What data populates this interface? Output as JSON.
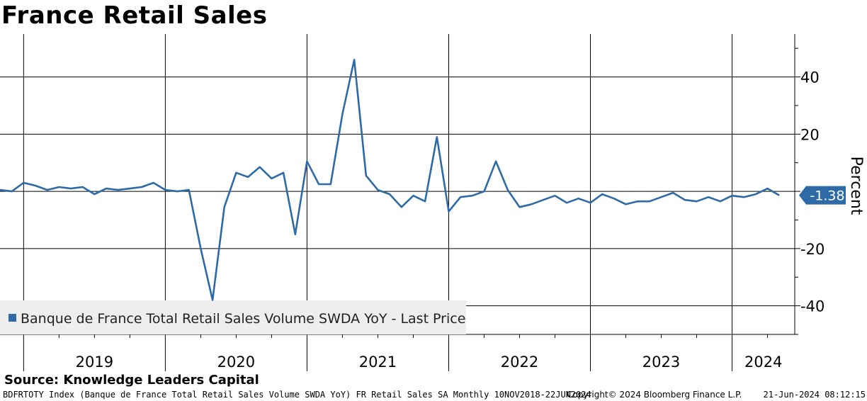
{
  "header": {
    "title": "France Retail Sales"
  },
  "source": "Source: Knowledge Leaders Capital",
  "footer": {
    "description": "BDFRTOTY Index (Banque de France Total Retail Sales Volume SWDA YoY) FR Retail Sales SA  Monthly 10NOV2018-22JUN2024",
    "copyright": "Copyright© 2024 Bloomberg Finance L.P.",
    "timestamp": "21-Jun-2024 08:12:15"
  },
  "colors": {
    "series": "#2d6aa6",
    "grid": "#000000",
    "legend_bg": "#eeeeee"
  },
  "chart_data": {
    "type": "line",
    "title": "France Retail Sales",
    "ylabel": "Percent",
    "xlabel": "",
    "ylim": [
      -50,
      55
    ],
    "yticks": [
      -40,
      -20,
      0,
      20,
      40
    ],
    "x_year_labels": [
      "2019",
      "2020",
      "2021",
      "2022",
      "2023",
      "2024"
    ],
    "x_start": "2018-11",
    "x_end": "2024-05",
    "grid": true,
    "legend": {
      "position": "bottom-left",
      "entries": [
        "Banque de France Total Retail Sales Volume SWDA YoY - Last Price"
      ]
    },
    "last_value_label": "-1.38",
    "series": [
      {
        "name": "Banque de France Total Retail Sales Volume SWDA YoY - Last Price",
        "last_value": -1.38,
        "x": [
          "2018-11",
          "2018-12",
          "2019-01",
          "2019-02",
          "2019-03",
          "2019-04",
          "2019-05",
          "2019-06",
          "2019-07",
          "2019-08",
          "2019-09",
          "2019-10",
          "2019-11",
          "2019-12",
          "2020-01",
          "2020-02",
          "2020-03",
          "2020-04",
          "2020-05",
          "2020-06",
          "2020-07",
          "2020-08",
          "2020-09",
          "2020-10",
          "2020-11",
          "2020-12",
          "2021-01",
          "2021-02",
          "2021-03",
          "2021-04",
          "2021-05",
          "2021-06",
          "2021-07",
          "2021-08",
          "2021-09",
          "2021-10",
          "2021-11",
          "2021-12",
          "2022-01",
          "2022-02",
          "2022-03",
          "2022-04",
          "2022-05",
          "2022-06",
          "2022-07",
          "2022-08",
          "2022-09",
          "2022-10",
          "2022-11",
          "2022-12",
          "2023-01",
          "2023-02",
          "2023-03",
          "2023-04",
          "2023-05",
          "2023-06",
          "2023-07",
          "2023-08",
          "2023-09",
          "2023-10",
          "2023-11",
          "2023-12",
          "2024-01",
          "2024-02",
          "2024-03",
          "2024-04",
          "2024-05"
        ],
        "values": [
          0.5,
          0,
          3,
          2,
          0.5,
          1.5,
          1,
          1.5,
          -1,
          1,
          0.5,
          1,
          1.5,
          3,
          0.5,
          0,
          0.5,
          -20,
          -38,
          -5.5,
          6.5,
          5,
          8.5,
          4.5,
          6.5,
          -15,
          10.5,
          2.5,
          2.5,
          27,
          46,
          5.5,
          0.5,
          -1,
          -5.5,
          -1.5,
          -3.5,
          19,
          -7,
          -2,
          -1.5,
          0,
          10.5,
          0.5,
          -5.5,
          -4.5,
          -3,
          -1.5,
          -4,
          -2.5,
          -4,
          -1,
          -2.5,
          -4.5,
          -3.5,
          -3.5,
          -2,
          -0.5,
          -3,
          -3.5,
          -2,
          -3.5,
          -1.5,
          -2,
          -1,
          1,
          -1.38
        ]
      }
    ]
  }
}
